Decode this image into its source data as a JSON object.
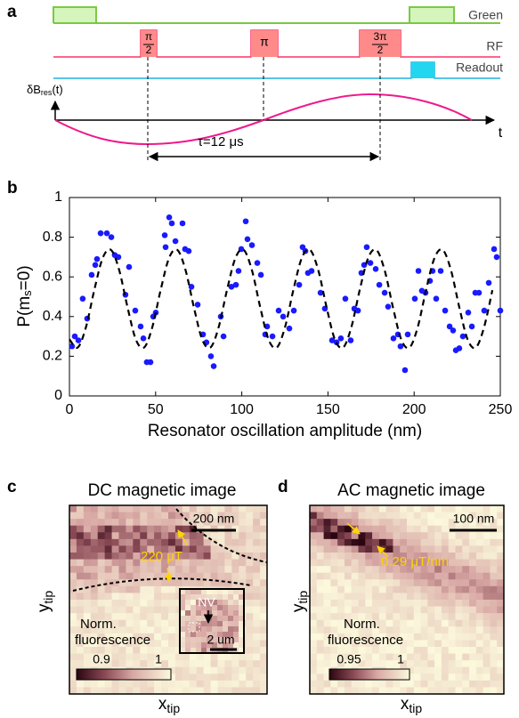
{
  "panel_a": {
    "label": "a",
    "traces": [
      "Green",
      "RF",
      "Readout"
    ],
    "pulses": [
      "π",
      "2",
      "π",
      "3π",
      "2"
    ],
    "field_label": {
      "main": "δB",
      "sub": "res",
      "end": "(t)"
    },
    "time_axis": "t",
    "interval": "τ=12 μs"
  },
  "chart_data": {
    "type": "scatter",
    "panel_label": "b",
    "y_label": {
      "main": "P(m",
      "sub": "s",
      "end": "=0)"
    },
    "x_label": "Resonator oscillation amplitude (nm)",
    "xlim": [
      0,
      250
    ],
    "xticks": [
      0,
      50,
      100,
      150,
      200,
      250
    ],
    "ylim": [
      0,
      1
    ],
    "yticks": [
      0,
      0.2,
      0.4,
      0.6,
      0.8,
      1
    ],
    "series": [
      {
        "type": "scatter",
        "color": "#1a1aff",
        "x": [
          1.5,
          3.1,
          5.2,
          7.7,
          10.3,
          12.9,
          15.0,
          16.0,
          18.1,
          21.7,
          24.3,
          26.3,
          28.4,
          32.5,
          34.6,
          38.2,
          41.3,
          42.9,
          44.9,
          47.0,
          48.6,
          50.1,
          55.3,
          55.8,
          57.9,
          59.4,
          61.5,
          65.6,
          67.1,
          69.2,
          70.8,
          74.4,
          77.5,
          79.5,
          82.1,
          83.7,
          87.8,
          89.4,
          94.0,
          96.6,
          98.1,
          99.7,
          102.3,
          103.3,
          105.9,
          109.0,
          111.1,
          113.6,
          114.7,
          117.8,
          121.4,
          124.0,
          127.6,
          130.2,
          133.3,
          135.3,
          136.9,
          138.4,
          140.5,
          145.7,
          148.2,
          152.4,
          155.0,
          157.5,
          160.1,
          163.2,
          165.3,
          167.4,
          169.4,
          171.0,
          172.5,
          174.6,
          177.7,
          179.8,
          182.9,
          184.9,
          188.0,
          190.6,
          192.1,
          194.7,
          196.3,
          200.4,
          202.5,
          204.5,
          206.6,
          209.2,
          210.7,
          212.8,
          215.4,
          218.0,
          220.6,
          222.6,
          224.2,
          226.2,
          228.3,
          231.4,
          233.5,
          235.5,
          237.6,
          240.7,
          243.3,
          246.4,
          247.9,
          250.0
        ],
        "values": [
          0.25,
          0.3,
          0.28,
          0.49,
          0.39,
          0.61,
          0.66,
          0.69,
          0.82,
          0.82,
          0.8,
          0.71,
          0.7,
          0.51,
          0.65,
          0.43,
          0.35,
          0.29,
          0.17,
          0.17,
          0.4,
          0.42,
          0.81,
          0.75,
          0.9,
          0.87,
          0.78,
          0.87,
          0.74,
          0.73,
          0.55,
          0.46,
          0.31,
          0.27,
          0.2,
          0.15,
          0.4,
          0.3,
          0.55,
          0.56,
          0.63,
          0.74,
          0.88,
          0.79,
          0.76,
          0.67,
          0.61,
          0.31,
          0.35,
          0.3,
          0.43,
          0.4,
          0.34,
          0.43,
          0.56,
          0.75,
          0.73,
          0.62,
          0.63,
          0.52,
          0.44,
          0.28,
          0.27,
          0.29,
          0.49,
          0.28,
          0.44,
          0.43,
          0.62,
          0.66,
          0.75,
          0.67,
          0.64,
          0.56,
          0.52,
          0.45,
          0.29,
          0.31,
          0.25,
          0.13,
          0.31,
          0.49,
          0.63,
          0.53,
          0.52,
          0.58,
          0.63,
          0.49,
          0.63,
          0.43,
          0.35,
          0.33,
          0.23,
          0.24,
          0.3,
          0.42,
          0.35,
          0.52,
          0.52,
          0.43,
          0.57,
          0.74,
          0.7,
          0.43
        ]
      },
      {
        "type": "line",
        "color": "#000000",
        "dashed": true,
        "x": [
          0,
          4.8,
          9.6,
          14.4,
          19.3,
          24.1,
          28.9,
          33.7,
          38.5,
          43.3,
          48.1,
          52.9,
          57.8,
          62.6,
          67.4,
          72.2,
          77,
          81.8,
          86.6,
          91.4,
          96.3,
          101.1,
          105.9,
          110.7,
          115.5,
          120.3,
          125.1,
          129.9,
          134.8,
          139.6,
          144.4,
          149.2,
          154,
          158.8,
          163.6,
          168.4,
          173.3,
          178.1,
          182.9,
          187.7,
          192.5,
          197.3,
          202.1,
          206.9,
          211.8,
          216.6,
          221.4,
          226.2,
          231,
          235.8,
          240.6,
          245.4
        ],
        "values": [
          0.285,
          0.244,
          0.347,
          0.533,
          0.695,
          0.736,
          0.633,
          0.447,
          0.285,
          0.244,
          0.347,
          0.533,
          0.695,
          0.736,
          0.633,
          0.447,
          0.285,
          0.244,
          0.347,
          0.533,
          0.695,
          0.736,
          0.633,
          0.447,
          0.285,
          0.244,
          0.347,
          0.533,
          0.695,
          0.736,
          0.633,
          0.447,
          0.285,
          0.244,
          0.347,
          0.533,
          0.695,
          0.736,
          0.633,
          0.447,
          0.285,
          0.244,
          0.347,
          0.533,
          0.695,
          0.736,
          0.633,
          0.447,
          0.285,
          0.244,
          0.347,
          0.533
        ]
      }
    ]
  },
  "panel_c": {
    "label": "c",
    "title": "DC magnetic image",
    "scale_bar": "200 nm",
    "annotation": "220 μT",
    "colorbar_title": [
      "Norm.",
      "fluorescence"
    ],
    "colorbar_ticks": [
      "0.9",
      "1"
    ],
    "inset_label": "NV",
    "inset_scale": "2 um",
    "x_label": {
      "main": "x",
      "sub": "tip"
    },
    "y_label": {
      "main": "y",
      "sub": "tip"
    }
  },
  "panel_d": {
    "label": "d",
    "title": "AC magnetic image",
    "scale_bar": "100 nm",
    "annotation": "0.29 μT/nm",
    "colorbar_title": [
      "Norm.",
      "fluorescence"
    ],
    "colorbar_ticks": [
      "0.95",
      "1"
    ],
    "x_label": {
      "main": "x",
      "sub": "tip"
    },
    "y_label": {
      "main": "y",
      "sub": "tip"
    }
  }
}
